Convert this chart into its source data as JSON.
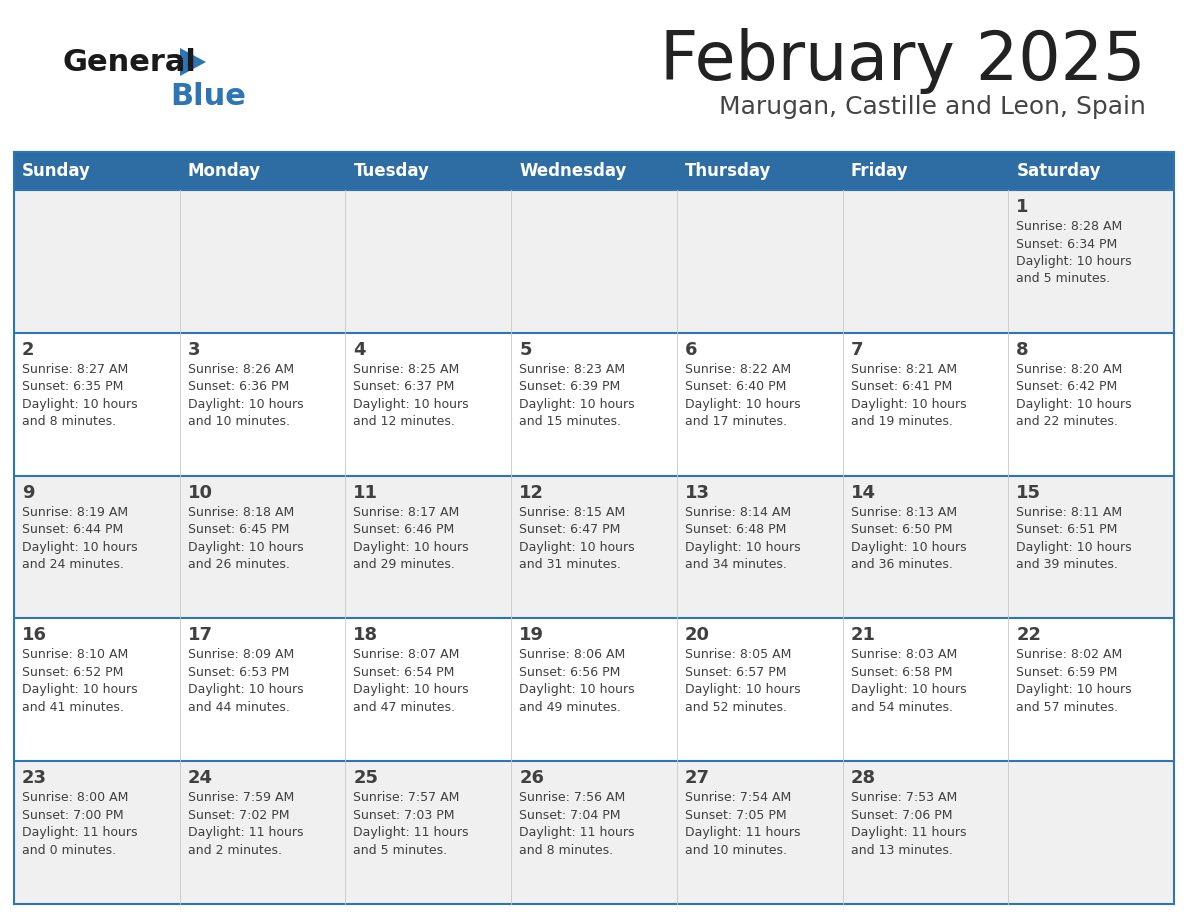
{
  "title": "February 2025",
  "subtitle": "Marugan, Castille and Leon, Spain",
  "days_of_week": [
    "Sunday",
    "Monday",
    "Tuesday",
    "Wednesday",
    "Thursday",
    "Friday",
    "Saturday"
  ],
  "header_bg": "#2E6DA4",
  "header_text_color": "#FFFFFF",
  "row_bg_even": "#F0F0F0",
  "row_bg_odd": "#FFFFFF",
  "border_color": "#2E75B6",
  "sep_line_color": "#2E75B6",
  "text_color": "#404040",
  "title_color": "#222222",
  "subtitle_color": "#444444",
  "logo_black": "#1a1a1a",
  "logo_blue": "#2E75B6",
  "logo_triangle": "#2E75B6",
  "calendar_data": [
    [
      {
        "day": "",
        "info": ""
      },
      {
        "day": "",
        "info": ""
      },
      {
        "day": "",
        "info": ""
      },
      {
        "day": "",
        "info": ""
      },
      {
        "day": "",
        "info": ""
      },
      {
        "day": "",
        "info": ""
      },
      {
        "day": "1",
        "info": "Sunrise: 8:28 AM\nSunset: 6:34 PM\nDaylight: 10 hours\nand 5 minutes."
      }
    ],
    [
      {
        "day": "2",
        "info": "Sunrise: 8:27 AM\nSunset: 6:35 PM\nDaylight: 10 hours\nand 8 minutes."
      },
      {
        "day": "3",
        "info": "Sunrise: 8:26 AM\nSunset: 6:36 PM\nDaylight: 10 hours\nand 10 minutes."
      },
      {
        "day": "4",
        "info": "Sunrise: 8:25 AM\nSunset: 6:37 PM\nDaylight: 10 hours\nand 12 minutes."
      },
      {
        "day": "5",
        "info": "Sunrise: 8:23 AM\nSunset: 6:39 PM\nDaylight: 10 hours\nand 15 minutes."
      },
      {
        "day": "6",
        "info": "Sunrise: 8:22 AM\nSunset: 6:40 PM\nDaylight: 10 hours\nand 17 minutes."
      },
      {
        "day": "7",
        "info": "Sunrise: 8:21 AM\nSunset: 6:41 PM\nDaylight: 10 hours\nand 19 minutes."
      },
      {
        "day": "8",
        "info": "Sunrise: 8:20 AM\nSunset: 6:42 PM\nDaylight: 10 hours\nand 22 minutes."
      }
    ],
    [
      {
        "day": "9",
        "info": "Sunrise: 8:19 AM\nSunset: 6:44 PM\nDaylight: 10 hours\nand 24 minutes."
      },
      {
        "day": "10",
        "info": "Sunrise: 8:18 AM\nSunset: 6:45 PM\nDaylight: 10 hours\nand 26 minutes."
      },
      {
        "day": "11",
        "info": "Sunrise: 8:17 AM\nSunset: 6:46 PM\nDaylight: 10 hours\nand 29 minutes."
      },
      {
        "day": "12",
        "info": "Sunrise: 8:15 AM\nSunset: 6:47 PM\nDaylight: 10 hours\nand 31 minutes."
      },
      {
        "day": "13",
        "info": "Sunrise: 8:14 AM\nSunset: 6:48 PM\nDaylight: 10 hours\nand 34 minutes."
      },
      {
        "day": "14",
        "info": "Sunrise: 8:13 AM\nSunset: 6:50 PM\nDaylight: 10 hours\nand 36 minutes."
      },
      {
        "day": "15",
        "info": "Sunrise: 8:11 AM\nSunset: 6:51 PM\nDaylight: 10 hours\nand 39 minutes."
      }
    ],
    [
      {
        "day": "16",
        "info": "Sunrise: 8:10 AM\nSunset: 6:52 PM\nDaylight: 10 hours\nand 41 minutes."
      },
      {
        "day": "17",
        "info": "Sunrise: 8:09 AM\nSunset: 6:53 PM\nDaylight: 10 hours\nand 44 minutes."
      },
      {
        "day": "18",
        "info": "Sunrise: 8:07 AM\nSunset: 6:54 PM\nDaylight: 10 hours\nand 47 minutes."
      },
      {
        "day": "19",
        "info": "Sunrise: 8:06 AM\nSunset: 6:56 PM\nDaylight: 10 hours\nand 49 minutes."
      },
      {
        "day": "20",
        "info": "Sunrise: 8:05 AM\nSunset: 6:57 PM\nDaylight: 10 hours\nand 52 minutes."
      },
      {
        "day": "21",
        "info": "Sunrise: 8:03 AM\nSunset: 6:58 PM\nDaylight: 10 hours\nand 54 minutes."
      },
      {
        "day": "22",
        "info": "Sunrise: 8:02 AM\nSunset: 6:59 PM\nDaylight: 10 hours\nand 57 minutes."
      }
    ],
    [
      {
        "day": "23",
        "info": "Sunrise: 8:00 AM\nSunset: 7:00 PM\nDaylight: 11 hours\nand 0 minutes."
      },
      {
        "day": "24",
        "info": "Sunrise: 7:59 AM\nSunset: 7:02 PM\nDaylight: 11 hours\nand 2 minutes."
      },
      {
        "day": "25",
        "info": "Sunrise: 7:57 AM\nSunset: 7:03 PM\nDaylight: 11 hours\nand 5 minutes."
      },
      {
        "day": "26",
        "info": "Sunrise: 7:56 AM\nSunset: 7:04 PM\nDaylight: 11 hours\nand 8 minutes."
      },
      {
        "day": "27",
        "info": "Sunrise: 7:54 AM\nSunset: 7:05 PM\nDaylight: 11 hours\nand 10 minutes."
      },
      {
        "day": "28",
        "info": "Sunrise: 7:53 AM\nSunset: 7:06 PM\nDaylight: 11 hours\nand 13 minutes."
      },
      {
        "day": "",
        "info": ""
      }
    ]
  ]
}
